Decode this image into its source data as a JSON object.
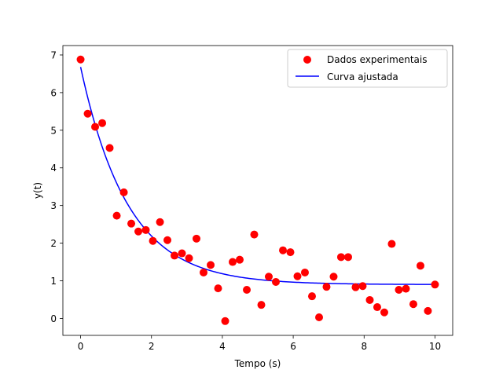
{
  "chart_data": {
    "type": "scatter",
    "title": "",
    "xlabel": "Tempo (s)",
    "ylabel": "y(t)",
    "xlim": [
      -0.5,
      10.5
    ],
    "ylim": [
      -0.45,
      7.25
    ],
    "xticks": [
      0,
      2,
      4,
      6,
      8,
      10
    ],
    "yticks": [
      0,
      1,
      2,
      3,
      4,
      5,
      6,
      7
    ],
    "grid": false,
    "legend_position": "top-right",
    "series": [
      {
        "name": "Dados experimentais",
        "kind": "scatter",
        "color": "#ff0000",
        "x": [
          0.0,
          0.2,
          0.41,
          0.61,
          0.82,
          1.02,
          1.22,
          1.43,
          1.63,
          1.84,
          2.04,
          2.24,
          2.45,
          2.65,
          2.86,
          3.06,
          3.27,
          3.47,
          3.67,
          3.88,
          4.08,
          4.29,
          4.49,
          4.69,
          4.9,
          5.1,
          5.31,
          5.51,
          5.71,
          5.92,
          6.12,
          6.33,
          6.53,
          6.73,
          6.94,
          7.14,
          7.35,
          7.55,
          7.76,
          7.96,
          8.16,
          8.37,
          8.57,
          8.78,
          8.98,
          9.18,
          9.39,
          9.59,
          9.8,
          10.0
        ],
        "y": [
          6.88,
          5.44,
          5.09,
          5.19,
          4.53,
          2.73,
          3.35,
          2.52,
          2.31,
          2.35,
          2.06,
          2.56,
          2.08,
          1.67,
          1.73,
          1.6,
          2.12,
          1.22,
          1.42,
          0.8,
          -0.07,
          1.5,
          1.56,
          0.76,
          2.23,
          0.36,
          1.11,
          0.97,
          1.81,
          1.76,
          1.12,
          1.22,
          0.59,
          0.03,
          0.84,
          1.11,
          1.63,
          1.63,
          0.83,
          0.86,
          0.49,
          0.3,
          0.16,
          1.98,
          0.76,
          0.79,
          0.38,
          1.4,
          0.2,
          0.9
        ]
      },
      {
        "name": "Curva ajustada",
        "kind": "line",
        "color": "#0000ff",
        "model": {
          "a": 5.78,
          "b": 0.75,
          "c": 0.9
        }
      }
    ]
  }
}
